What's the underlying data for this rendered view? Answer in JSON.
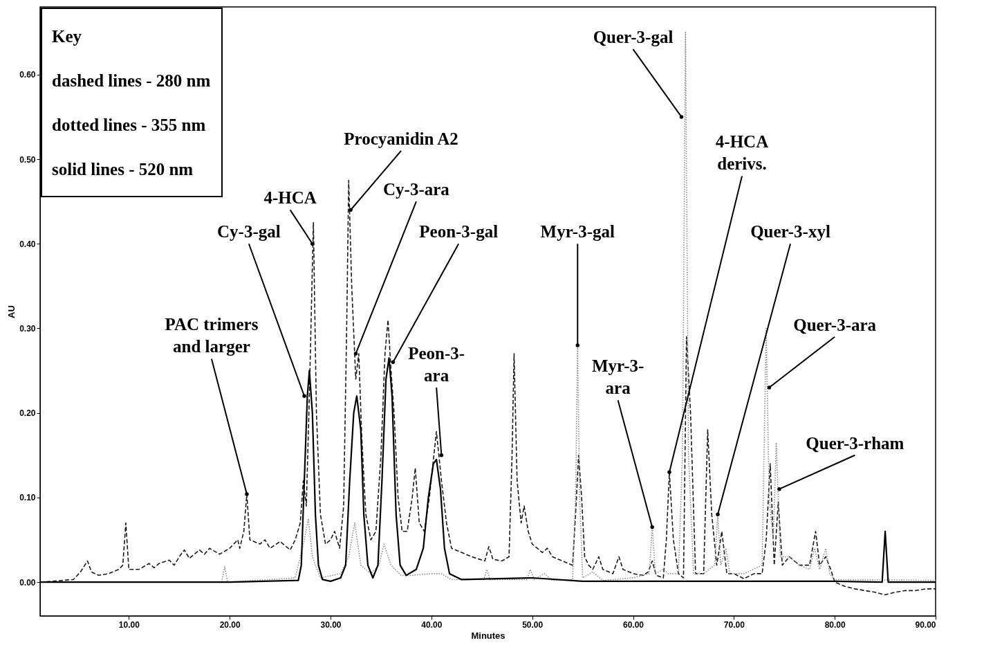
{
  "chart_data": {
    "type": "line",
    "xlabel": "Minutes",
    "ylabel": "AU",
    "xlim": [
      1.2,
      90
    ],
    "ylim": [
      -0.04,
      0.68
    ],
    "xticks": [
      {
        "value": 10,
        "label": "10.00"
      },
      {
        "value": 20,
        "label": "20.00"
      },
      {
        "value": 30,
        "label": "30.00"
      },
      {
        "value": 40,
        "label": "40.00"
      },
      {
        "value": 50,
        "label": "50.00"
      },
      {
        "value": 60,
        "label": "60.00"
      },
      {
        "value": 70,
        "label": "70.00"
      },
      {
        "value": 80,
        "label": "80.00"
      },
      {
        "value": 90,
        "label": "90.00"
      }
    ],
    "yticks": [
      {
        "value": 0,
        "label": "0.00"
      },
      {
        "value": 0.1,
        "label": "0.10"
      },
      {
        "value": 0.2,
        "label": "0.20"
      },
      {
        "value": 0.3,
        "label": "0.30"
      },
      {
        "value": 0.4,
        "label": "0.40"
      },
      {
        "value": 0.5,
        "label": "0.50"
      },
      {
        "value": 0.6,
        "label": "0.60"
      }
    ],
    "grid": false,
    "series": [
      {
        "color": "#1a1a1a",
        "line_style": "dashed",
        "x": [
          1.2,
          4.5,
          5.2,
          5.9,
          6.3,
          7,
          8,
          9,
          9.4,
          9.7,
          10,
          11,
          12,
          12.5,
          13,
          14,
          14.5,
          15,
          15.5,
          16,
          17,
          17.5,
          18,
          19,
          20,
          20.8,
          21,
          21.4,
          21.7,
          22,
          23,
          23.5,
          24,
          25,
          26,
          26.5,
          27,
          27.3,
          27.6,
          27.9,
          28.3,
          28.6,
          29,
          29.5,
          30,
          30.4,
          30.9,
          31.3,
          31.6,
          31.8,
          32.1,
          32.5,
          32.8,
          33.1,
          33.5,
          34,
          34.5,
          35,
          35.4,
          35.7,
          36,
          36.3,
          36.7,
          37.1,
          37.6,
          38.1,
          38.4,
          38.8,
          39.3,
          39.8,
          40.5,
          41,
          41.5,
          42,
          43,
          44,
          45.3,
          45.7,
          46.1,
          47,
          47.7,
          48,
          48.2,
          48.5,
          48.9,
          49.2,
          49.6,
          50,
          50.5,
          51,
          51.5,
          52,
          53,
          54,
          54.3,
          54.6,
          54.9,
          55.2,
          55.6,
          56,
          56.6,
          57,
          58,
          58.6,
          59,
          60,
          61,
          61.5,
          61.9,
          62.3,
          63,
          63.3,
          63.6,
          64,
          64.5,
          65,
          65.3,
          65.7,
          66.2,
          67,
          67.4,
          67.8,
          68.3,
          68.8,
          69.3,
          70,
          71,
          72,
          72.8,
          73.2,
          73.6,
          74,
          74.4,
          74.8,
          75.5,
          76.5,
          77.5,
          78.1,
          78.5,
          79.1,
          79.6,
          80,
          81,
          82,
          83,
          84,
          85,
          86,
          87,
          88,
          89,
          90
        ],
        "values": [
          0,
          0.003,
          0.012,
          0.025,
          0.012,
          0.008,
          0.01,
          0.015,
          0.02,
          0.07,
          0.015,
          0.015,
          0.022,
          0.017,
          0.022,
          0.026,
          0.02,
          0.03,
          0.038,
          0.028,
          0.038,
          0.033,
          0.04,
          0.033,
          0.04,
          0.05,
          0.04,
          0.06,
          0.104,
          0.05,
          0.045,
          0.05,
          0.04,
          0.048,
          0.038,
          0.05,
          0.07,
          0.12,
          0.09,
          0.22,
          0.425,
          0.2,
          0.08,
          0.045,
          0.05,
          0.06,
          0.04,
          0.09,
          0.3,
          0.475,
          0.35,
          0.24,
          0.27,
          0.17,
          0.08,
          0.05,
          0.06,
          0.15,
          0.27,
          0.31,
          0.25,
          0.2,
          0.1,
          0.06,
          0.06,
          0.1,
          0.135,
          0.07,
          0.06,
          0.1,
          0.178,
          0.12,
          0.07,
          0.04,
          0.035,
          0.03,
          0.025,
          0.042,
          0.027,
          0.025,
          0.03,
          0.15,
          0.27,
          0.12,
          0.07,
          0.09,
          0.06,
          0.045,
          0.04,
          0.035,
          0.04,
          0.03,
          0.025,
          0.02,
          0.08,
          0.15,
          0.1,
          0.03,
          0.02,
          0.015,
          0.03,
          0.015,
          0.01,
          0.03,
          0.015,
          0.01,
          0.008,
          0.012,
          0.025,
          0.008,
          0.005,
          0.05,
          0.13,
          0.05,
          0.01,
          0.005,
          0.29,
          0.2,
          0.01,
          0.01,
          0.18,
          0.08,
          0.02,
          0.06,
          0.01,
          0.01,
          0.004,
          0.01,
          0.01,
          0.05,
          0.14,
          0.02,
          0.095,
          0.02,
          0.03,
          0.02,
          0.02,
          0.06,
          0.02,
          0.03,
          0.015,
          0,
          -0.005,
          -0.008,
          -0.01,
          -0.012,
          -0.015,
          -0.012,
          -0.01,
          -0.01,
          -0.008,
          -0.008
        ]
      },
      {
        "color": "#8c8c8c",
        "line_style": "dotted",
        "x": [
          1.2,
          19.2,
          19.5,
          19.8,
          26.5,
          27.4,
          27.8,
          28.2,
          29,
          31,
          31.8,
          32.4,
          33,
          34,
          34.8,
          35.3,
          36,
          37,
          38,
          40,
          41,
          42,
          45.2,
          45.5,
          45.8,
          49.5,
          49.8,
          50.2,
          51.2,
          52,
          54,
          54.3,
          54.5,
          54.7,
          55,
          56,
          57,
          60,
          61.6,
          61.9,
          62.2,
          63,
          63.5,
          64.5,
          64.9,
          65.2,
          65.5,
          66,
          67,
          68.1,
          68.4,
          68.7,
          69.2,
          69.6,
          71,
          72.8,
          73.2,
          73.5,
          73.9,
          74.2,
          74.6,
          75.5,
          76.5,
          77.5,
          78,
          78.5,
          79.1,
          79.5,
          80,
          90
        ],
        "values": [
          0,
          0,
          0.018,
          0,
          0.005,
          0.05,
          0.075,
          0.03,
          0.005,
          0.01,
          0.03,
          0.07,
          0.02,
          0.01,
          0.02,
          0.045,
          0.02,
          0.008,
          0.008,
          0.01,
          0.01,
          0.003,
          0.003,
          0.015,
          0.003,
          0.003,
          0.015,
          0.003,
          0.01,
          0.002,
          0.003,
          0.1,
          0.28,
          0.1,
          0.005,
          0.012,
          0.002,
          0.005,
          0.01,
          0.065,
          0.01,
          0.015,
          0.01,
          0.01,
          0.15,
          0.65,
          0.15,
          0.01,
          0.01,
          0.02,
          0.08,
          0.02,
          0.04,
          0.01,
          0.01,
          0.02,
          0.3,
          0.1,
          0.05,
          0.165,
          0.03,
          0.03,
          0.02,
          0.015,
          0.04,
          0.015,
          0.04,
          0.01,
          0.003,
          0.002
        ]
      },
      {
        "color": "#000000",
        "line_style": "solid",
        "x": [
          1.2,
          20,
          26.8,
          27.1,
          27.4,
          27.7,
          27.9,
          28.2,
          28.5,
          28.8,
          29.2,
          30,
          31,
          31.5,
          31.9,
          32.3,
          32.6,
          33,
          33.3,
          33.7,
          34.2,
          34.7,
          35.1,
          35.5,
          35.8,
          36.1,
          36.5,
          36.9,
          37.5,
          38.5,
          39.2,
          39.7,
          40.2,
          40.5,
          40.9,
          41.3,
          41.8,
          43,
          50,
          55,
          70,
          80,
          84.7,
          85,
          85.3,
          90
        ],
        "values": [
          0,
          0,
          0.002,
          0.02,
          0.12,
          0.22,
          0.25,
          0.2,
          0.08,
          0.02,
          0.003,
          0.001,
          0.005,
          0.02,
          0.12,
          0.2,
          0.22,
          0.18,
          0.08,
          0.02,
          0.005,
          0.02,
          0.12,
          0.24,
          0.265,
          0.22,
          0.08,
          0.02,
          0.008,
          0.015,
          0.04,
          0.1,
          0.14,
          0.145,
          0.11,
          0.04,
          0.01,
          0.003,
          0.005,
          0.001,
          0.001,
          0.001,
          0,
          0.06,
          0,
          0
        ]
      }
    ],
    "annotations": [
      "Key",
      "dashed lines - 280 nm",
      "dotted lines - 355 nm",
      "solid lines - 520 nm",
      {
        "text": "PAC trimers\nand larger",
        "x": 21.7,
        "y": 0.104
      },
      {
        "text": "Cy-3-gal",
        "x": 27.4,
        "y": 0.22
      },
      {
        "text": "4-HCA",
        "x": 28.2,
        "y": 0.4
      },
      {
        "text": "Procyanidin A2",
        "x": 32,
        "y": 0.44
      },
      {
        "text": "Cy-3-ara",
        "x": 32.5,
        "y": 0.27
      },
      {
        "text": "Peon-3-gal",
        "x": 36.2,
        "y": 0.26
      },
      {
        "text": "Peon-3-\nara",
        "x": 41,
        "y": 0.15
      },
      {
        "text": "Myr-3-gal",
        "x": 54.5,
        "y": 0.28
      },
      {
        "text": "Myr-3-\nara",
        "x": 61.9,
        "y": 0.065
      },
      {
        "text": "Quer-3-gal",
        "x": 64.8,
        "y": 0.55
      },
      {
        "text": "4-HCA\nderivs.",
        "x": 63.6,
        "y": 0.13
      },
      {
        "text": "Quer-3-xyl",
        "x": 68.4,
        "y": 0.08
      },
      {
        "text": "Quer-3-ara",
        "x": 73.5,
        "y": 0.23
      },
      {
        "text": "Quer-3-rham",
        "x": 74.5,
        "y": 0.11
      }
    ]
  }
}
